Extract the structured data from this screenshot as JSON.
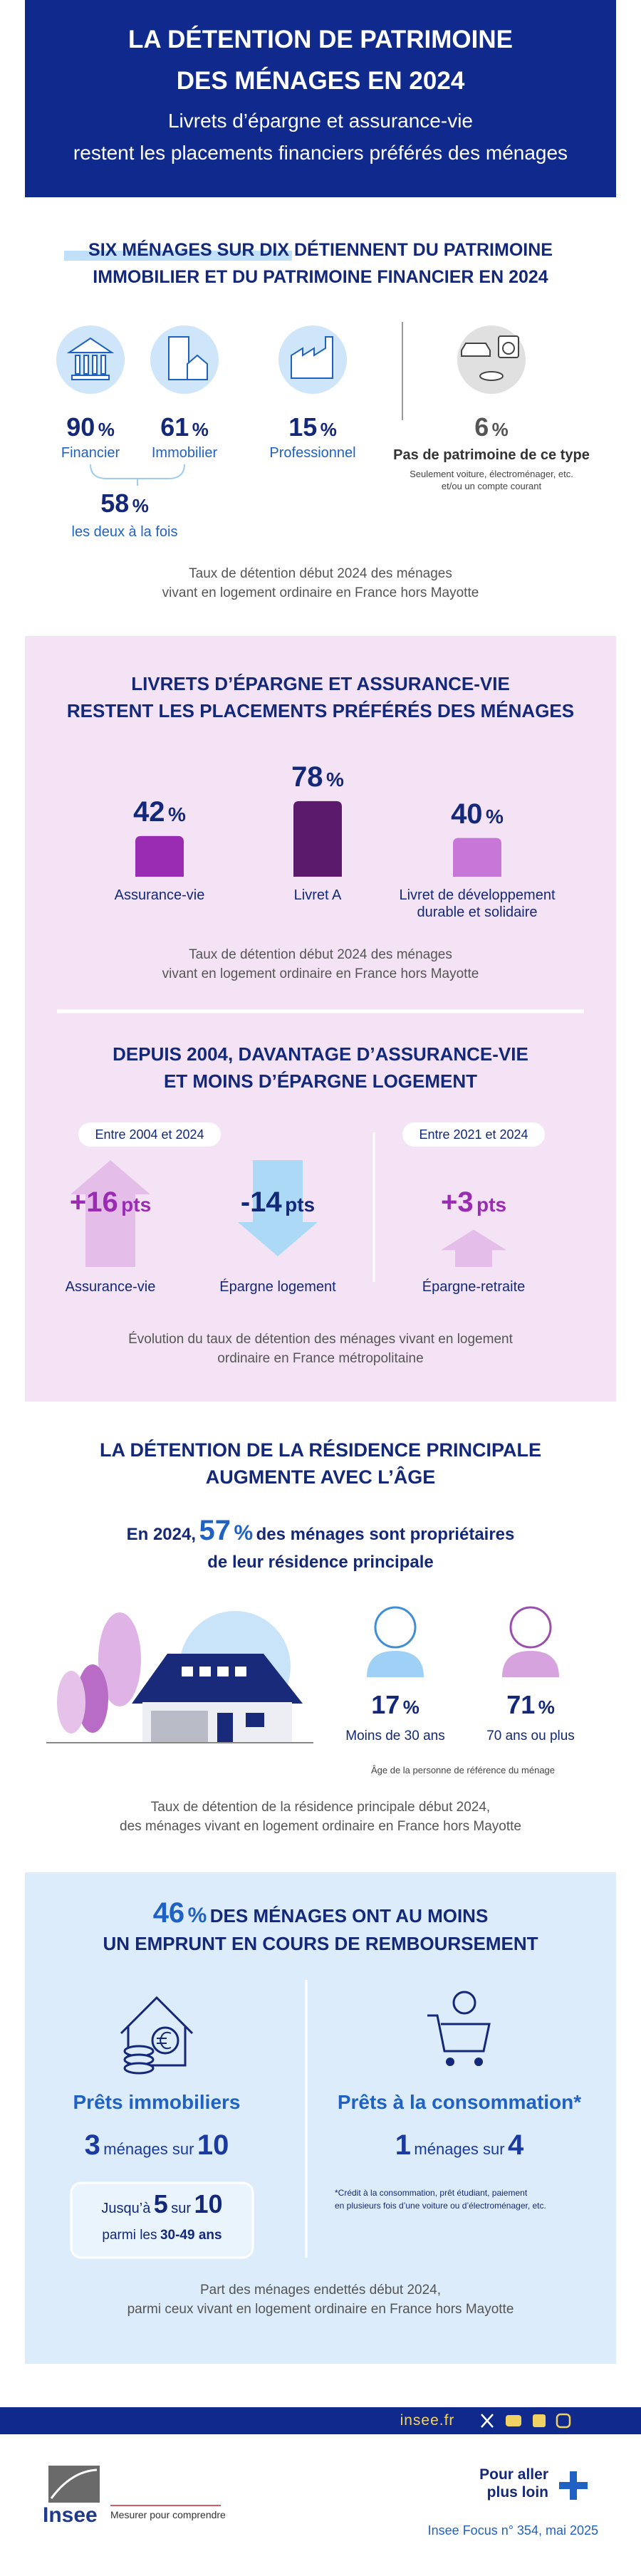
{
  "header": {
    "title_lines": [
      "LA DÉTENTION DE PATRIMOINE",
      "DES MÉNAGES EN 2024"
    ],
    "subtitle_lines": [
      "Livrets d’épargne et assurance-vie",
      "restent les placements financiers préférés des ménages"
    ]
  },
  "holdings": {
    "title_lines": [
      "SIX MÉNAGES SUR DIX DÉTIENNENT DU PATRIMOINE",
      "IMMOBILIER ET DU PATRIMOINE FINANCIER EN 2024"
    ],
    "items": [
      {
        "value": 90,
        "unit": "%",
        "label": "Financier"
      },
      {
        "value": 61,
        "unit": "%",
        "label": "Immobilier"
      },
      {
        "value": 15,
        "unit": "%",
        "label": "Professionnel"
      }
    ],
    "both": {
      "value": 58,
      "unit": "%",
      "label": "les deux à la fois"
    },
    "none": {
      "value": 6,
      "unit": "%",
      "label": "Pas de patrimoine de ce type",
      "details": [
        "Seulement voiture, électroménager, etc.",
        "et/ou un compte courant"
      ]
    },
    "note_lines": [
      "Taux de détention début 2024 des ménages",
      "vivant en logement ordinaire en France hors Mayotte"
    ]
  },
  "savings": {
    "title_lines": [
      "LIVRETS D’ÉPARGNE ET ASSURANCE-VIE",
      "RESTENT LES PLACEMENTS PRÉFÉRÉS DES MÉNAGES"
    ],
    "chart": {
      "type": "bar",
      "categories": [
        "Assurance-vie",
        "Livret A",
        "Livret de développement durable et solidaire"
      ],
      "values": [
        42,
        78,
        40
      ],
      "unit": "%",
      "colors": [
        "#9a2bb3",
        "#5c1a6c",
        "#c777d7"
      ]
    },
    "note_lines": [
      "Taux de détention début 2024 des ménages",
      "vivant en logement ordinaire en France hors Mayotte"
    ]
  },
  "trends": {
    "title_lines": [
      "DEPUIS 2004, DAVANTAGE D’ASSURANCE-VIE",
      "ET MOINS D’ÉPARGNE LOGEMENT"
    ],
    "periods": [
      {
        "label": "Entre 2004 et 2024",
        "items": [
          {
            "value": 16,
            "value_label": "+16",
            "unit": "pts",
            "label": "Assurance-vie",
            "color": "#e4bde9",
            "text_color": "#9a2bb3"
          },
          {
            "value": -14,
            "value_label": "-14",
            "unit": "pts",
            "label": "Épargne logement",
            "color": "#acd9f6",
            "text_color": "#14287a"
          }
        ]
      },
      {
        "label": "Entre 2021 et 2024",
        "items": [
          {
            "value": 3,
            "value_label": "+3",
            "unit": "pts",
            "label": "Épargne-retraite",
            "color": "#e4bde9",
            "text_color": "#9a2bb3"
          }
        ]
      }
    ],
    "note_lines": [
      "Évolution du taux de détention des ménages vivant en logement",
      "ordinaire en France métropolitaine"
    ]
  },
  "residence": {
    "title_lines": [
      "LA DÉTENTION DE LA RÉSIDENCE PRINCIPALE",
      "AUGMENTE AVEC L’ÂGE"
    ],
    "lead": {
      "prefix": "En  2024,",
      "value": 57,
      "unit": "%",
      "text": "des ménages sont propriétaires",
      "line2": "de leur résidence principale"
    },
    "items": [
      {
        "value": 17,
        "unit": "%",
        "label": "Moins de 30 ans"
      },
      {
        "value": 71,
        "unit": "%",
        "label": "70 ans ou plus"
      }
    ],
    "items_note": "Âge de la personne de référence du ménage",
    "note_lines": [
      "Taux de détention de la résidence principale début 2024,",
      "des ménages vivant en logement ordinaire en France hors Mayotte"
    ]
  },
  "loans": {
    "title": {
      "value": 46,
      "unit": "%",
      "text": "DES MÉNAGES ONT AU MOINS",
      "line2": "UN EMPRUNT EN COURS DE REMBOURSEMENT"
    },
    "real_estate": {
      "label": "Prêts immobiliers",
      "count": 3,
      "text": "ménages sur",
      "total": 10,
      "highlight": {
        "prefix": "Jusqu’à",
        "count": 5,
        "text": "sur",
        "total": 10,
        "group_prefix": "parmi les",
        "group": "30-49 ans"
      }
    },
    "consumer": {
      "label": "Prêts à la consommation*",
      "count": 1,
      "text": "ménages sur",
      "total": 4,
      "footnote_lines": [
        "*Crédit à la consommation, prêt étudiant, paiement",
        "en plusieurs fois d’une voiture ou d’électroménager, etc."
      ]
    },
    "note_lines": [
      "Part des ménages endettés début 2024,",
      "parmi ceux vivant en logement ordinaire en France hors Mayotte"
    ]
  },
  "footer": {
    "site": "insee.fr",
    "more_lines": [
      "Pour aller",
      "plus loin"
    ],
    "reference": "Insee Focus n° 354, mai 2025",
    "brand": "Insee",
    "tagline": "Mesurer pour comprendre"
  }
}
